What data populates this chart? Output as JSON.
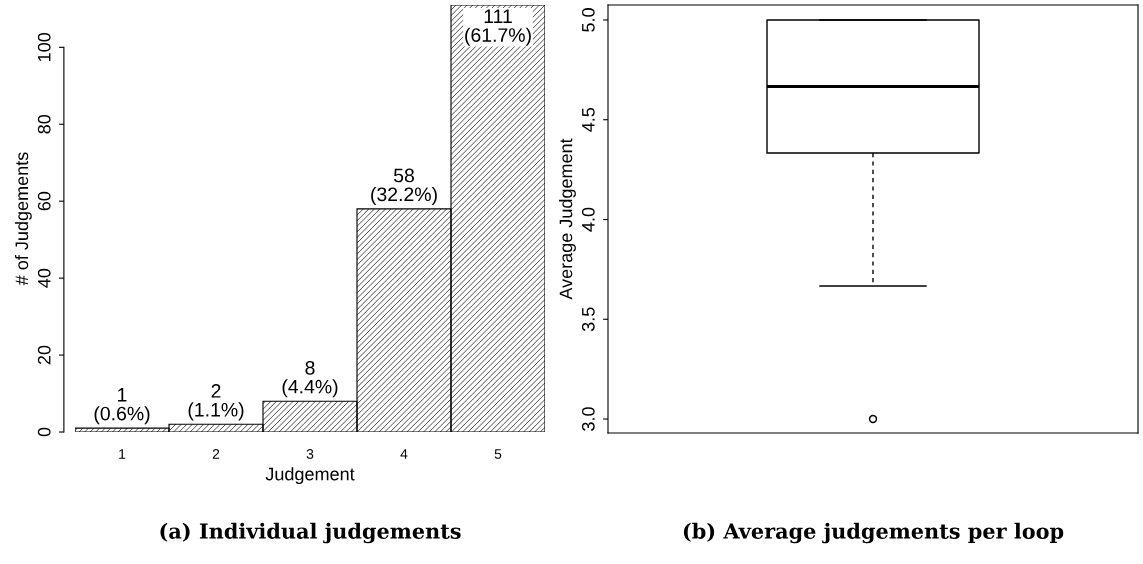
{
  "chart_data": [
    {
      "type": "bar",
      "title": "(a) Individual judgements",
      "xlabel": "Judgement",
      "ylabel": "# of Judgements",
      "categories": [
        "1",
        "2",
        "3",
        "4",
        "5"
      ],
      "values": [
        1,
        2,
        8,
        58,
        111
      ],
      "value_labels": [
        "1\n(0.6%)",
        "2\n(1.1%)",
        "8\n(4.4%)",
        "58\n(32.2%)",
        "111\n(61.7%)"
      ],
      "ylim": [
        0,
        111
      ],
      "yticks": [
        0,
        20,
        40,
        60,
        80,
        100
      ],
      "grid": false
    },
    {
      "type": "box",
      "title": "(b) Average judgements per loop",
      "ylabel": "Average Judgement",
      "categories": [
        null
      ],
      "boxes": [
        {
          "low": 3.667,
          "q1": 4.333,
          "median": 4.667,
          "q3": 5.0,
          "high": 5.0,
          "outliers": [
            3.0
          ]
        }
      ],
      "ylim": [
        2.93,
        5.075
      ],
      "yticks": [
        {
          "value": 3,
          "label": "3.0"
        },
        3.5,
        {
          "value": 4,
          "label": "4.0"
        },
        4.5,
        {
          "value": 5,
          "label": "5.0"
        }
      ],
      "grid": false
    }
  ]
}
